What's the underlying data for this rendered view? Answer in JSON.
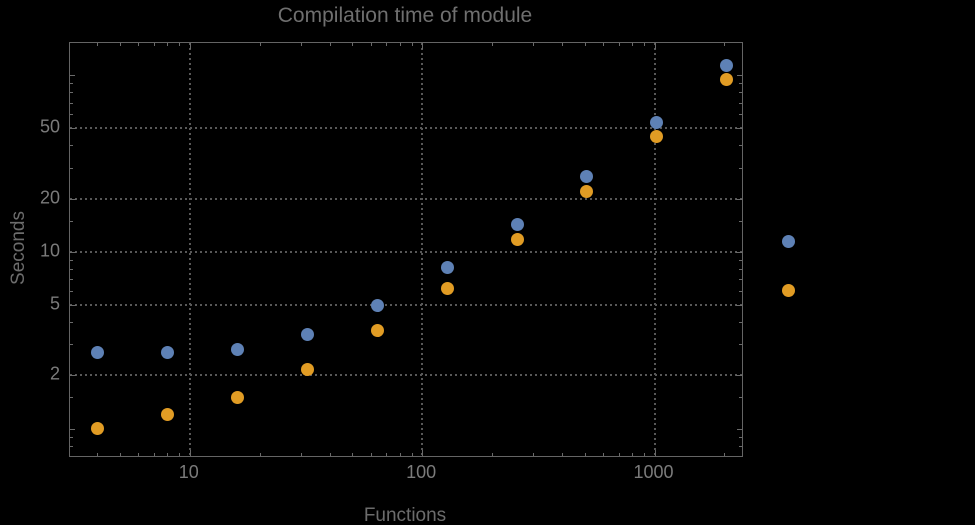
{
  "title": "Compilation time of module",
  "colors": {
    "background": "#000000",
    "frame": "#646464",
    "grid": "#585858",
    "tick_text": "#7b7b7b",
    "label_text": "#6c6c6c",
    "series_blue": "#5E81B5",
    "series_orange": "#E19C24"
  },
  "chart_data": {
    "type": "scatter",
    "title": "Compilation time of module",
    "xlabel": "Functions",
    "ylabel": "Seconds",
    "x_scale": "log",
    "y_scale": "log",
    "xlim": [
      3.05,
      2380
    ],
    "ylim": [
      0.7,
      152
    ],
    "grid": "dotted, on major ticks only",
    "x": [
      4,
      8,
      16,
      32,
      64,
      128,
      256,
      512,
      1024,
      2048
    ],
    "series": [
      {
        "name": "blue-series",
        "color": "#5E81B5",
        "values": [
          2.7,
          2.7,
          2.8,
          3.4,
          5.0,
          8.2,
          14.2,
          26.7,
          54,
          114
        ]
      },
      {
        "name": "orange-series",
        "color": "#E19C24",
        "values": [
          1.0,
          1.2,
          1.5,
          2.15,
          3.6,
          6.2,
          11.7,
          22,
          45,
          94
        ]
      }
    ],
    "x_ticks": {
      "major": [
        {
          "v": 10,
          "label": "10"
        },
        {
          "v": 100,
          "label": "100"
        },
        {
          "v": 1000,
          "label": "1000"
        }
      ],
      "minor": [
        4,
        5,
        6,
        7,
        8,
        9,
        20,
        30,
        40,
        50,
        60,
        70,
        80,
        90,
        200,
        300,
        400,
        500,
        600,
        700,
        800,
        900,
        2000
      ]
    },
    "y_ticks": {
      "major": [
        {
          "v": 2,
          "label": "2"
        },
        {
          "v": 5,
          "label": "5"
        },
        {
          "v": 10,
          "label": "10"
        },
        {
          "v": 20,
          "label": "20"
        },
        {
          "v": 50,
          "label": "50"
        }
      ],
      "unlabeled_medium": [
        1,
        100
      ],
      "minor": [
        0.8,
        0.9,
        1.5,
        3,
        4,
        6,
        7,
        8,
        9,
        15,
        30,
        40,
        60,
        70,
        80,
        90
      ]
    },
    "gridlines": {
      "x": [
        10,
        100,
        1000
      ],
      "y": [
        2,
        5,
        10,
        20,
        50
      ]
    },
    "legend": {
      "markers": [
        {
          "name": "blue-series",
          "color": "#5E81B5"
        },
        {
          "name": "orange-series",
          "color": "#E19C24"
        }
      ],
      "labels_visible": false
    },
    "marker_diameter_px": 13
  }
}
